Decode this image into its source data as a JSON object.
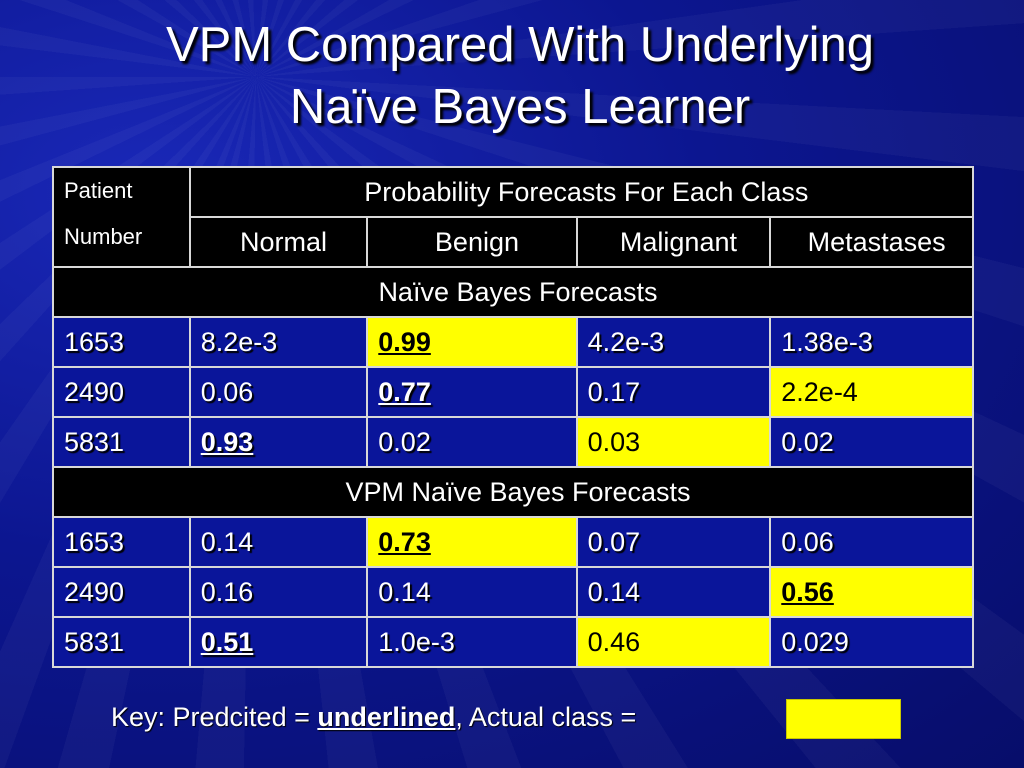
{
  "slide": {
    "title_line1": "VPM Compared With Underlying",
    "title_line2": "Naïve Bayes Learner"
  },
  "table": {
    "patient_header_line1": "Patient",
    "patient_header_line2": "Number",
    "group_header": "Probability Forecasts For Each Class",
    "classes": [
      "Normal",
      "Benign",
      "Malignant",
      "Metastases"
    ],
    "sections": [
      {
        "label": "Naïve Bayes Forecasts",
        "rows": [
          {
            "patient": "1653",
            "values": [
              "8.2e-3",
              "0.99",
              "4.2e-3",
              "1.38e-3"
            ],
            "predicted": 1,
            "actual": 1
          },
          {
            "patient": "2490",
            "values": [
              "0.06",
              "0.77",
              "0.17",
              "2.2e-4"
            ],
            "predicted": 1,
            "actual": 3
          },
          {
            "patient": "5831",
            "values": [
              "0.93",
              "0.02",
              "0.03",
              "0.02"
            ],
            "predicted": 0,
            "actual": 2
          }
        ]
      },
      {
        "label": "VPM Naïve Bayes Forecasts",
        "rows": [
          {
            "patient": "1653",
            "values": [
              "0.14",
              "0.73",
              "0.07",
              "0.06"
            ],
            "predicted": 1,
            "actual": 1
          },
          {
            "patient": "2490",
            "values": [
              "0.16",
              "0.14",
              "0.14",
              "0.56"
            ],
            "predicted": 3,
            "actual": 3
          },
          {
            "patient": "5831",
            "values": [
              "0.51",
              "1.0e-3",
              "0.46",
              "0.029"
            ],
            "predicted": 0,
            "actual": 2
          }
        ]
      }
    ]
  },
  "key": {
    "prefix": "Key: Predcited = ",
    "underlined_word": "underlined",
    "middle": ", Actual class = "
  },
  "colors": {
    "background": "#0c1690",
    "cell_blue": "#0a159a",
    "header_black": "#000000",
    "actual_highlight": "#ffff00"
  }
}
